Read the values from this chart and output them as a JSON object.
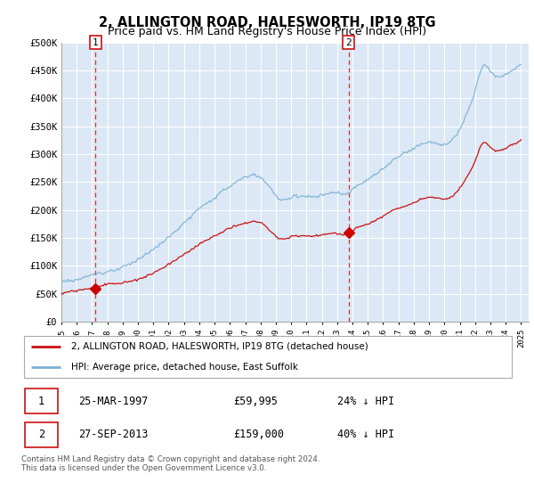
{
  "title": "2, ALLINGTON ROAD, HALESWORTH, IP19 8TG",
  "subtitle": "Price paid vs. HM Land Registry's House Price Index (HPI)",
  "title_fontsize": 10.5,
  "subtitle_fontsize": 9,
  "ylabel_ticks": [
    "£0",
    "£50K",
    "£100K",
    "£150K",
    "£200K",
    "£250K",
    "£300K",
    "£350K",
    "£400K",
    "£450K",
    "£500K"
  ],
  "ytick_values": [
    0,
    50000,
    100000,
    150000,
    200000,
    250000,
    300000,
    350000,
    400000,
    450000,
    500000
  ],
  "ylim": [
    0,
    500000
  ],
  "xlim_start": 1995.0,
  "xlim_end": 2025.5,
  "plot_bg_color": "#dce8f5",
  "grid_color": "#ffffff",
  "hpi_color": "#7ab0d4",
  "price_color": "#cc1111",
  "marker_color": "#cc0000",
  "sale1_x": 1997.23,
  "sale1_y": 59995,
  "sale1_label": "1",
  "sale2_x": 2013.74,
  "sale2_y": 159000,
  "sale2_label": "2",
  "legend_line1": "2, ALLINGTON ROAD, HALESWORTH, IP19 8TG (detached house)",
  "legend_line2": "HPI: Average price, detached house, East Suffolk",
  "table_row1_num": "1",
  "table_row1_date": "25-MAR-1997",
  "table_row1_price": "£59,995",
  "table_row1_hpi": "24% ↓ HPI",
  "table_row2_num": "2",
  "table_row2_date": "27-SEP-2013",
  "table_row2_price": "£159,000",
  "table_row2_hpi": "40% ↓ HPI",
  "footer": "Contains HM Land Registry data © Crown copyright and database right 2024.\nThis data is licensed under the Open Government Licence v3.0.",
  "xtick_years": [
    1995,
    1996,
    1997,
    1998,
    1999,
    2000,
    2001,
    2002,
    2003,
    2004,
    2005,
    2006,
    2007,
    2008,
    2009,
    2010,
    2011,
    2012,
    2013,
    2014,
    2015,
    2016,
    2017,
    2018,
    2019,
    2020,
    2021,
    2022,
    2023,
    2024,
    2025
  ]
}
